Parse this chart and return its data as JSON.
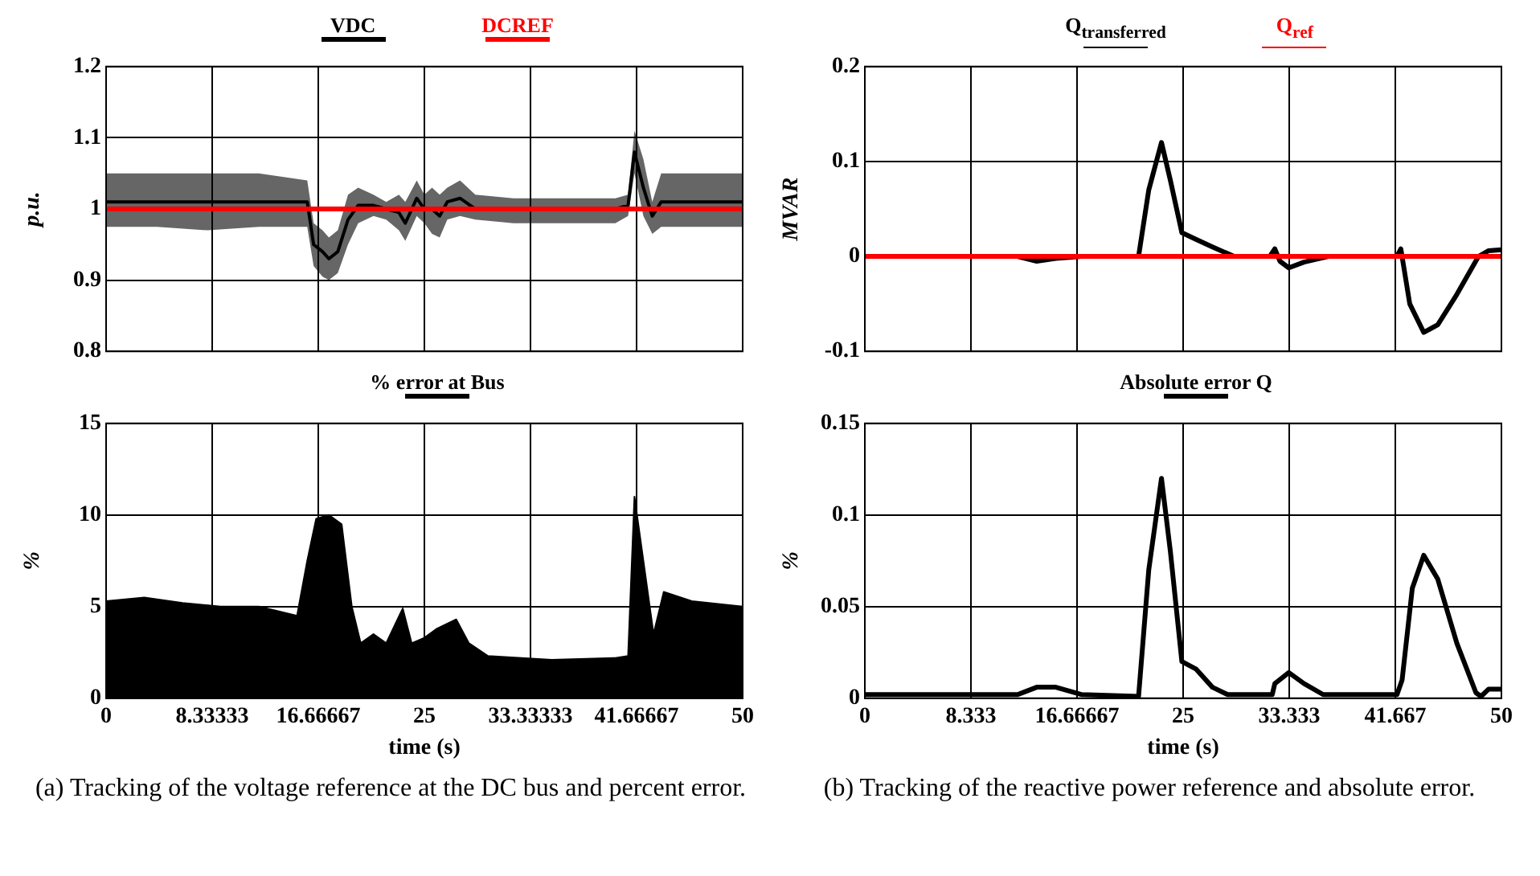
{
  "chart_data": [
    {
      "type": "line",
      "ylabel": "p.u.",
      "xlim": [
        0,
        50
      ],
      "xticks": [
        0,
        8.33333,
        16.66667,
        25,
        33.33333,
        41.66667,
        50
      ],
      "ylim": [
        0.8,
        1.2
      ],
      "yticks": [
        0.8,
        0.9,
        1,
        1.1,
        1.2
      ],
      "tick_labels": "y",
      "grid": true,
      "legend": "top",
      "series": [
        {
          "name": "VDC",
          "color": "#000000",
          "x": [
            0,
            4,
            8,
            12,
            15.8,
            16.3,
            17,
            17.5,
            18.2,
            19,
            19.8,
            21,
            22,
            23,
            23.5,
            24.4,
            25,
            25.6,
            26.2,
            26.8,
            27.8,
            29,
            32,
            36,
            40,
            41,
            41.5,
            42.2,
            42.9,
            43.6,
            46,
            50
          ],
          "values": [
            1.01,
            1.01,
            1.01,
            1.01,
            1.01,
            0.95,
            0.94,
            0.93,
            0.94,
            0.985,
            1.005,
            1.005,
            1.0,
            0.995,
            0.98,
            1.015,
            1.0,
            1.0,
            0.99,
            1.01,
            1.015,
            1.0,
            1.0,
            1.0,
            1.0,
            1.005,
            1.08,
            1.03,
            0.99,
            1.01,
            1.01,
            1.01
          ],
          "lower": [
            0.975,
            0.975,
            0.97,
            0.975,
            0.975,
            0.92,
            0.905,
            0.9,
            0.91,
            0.95,
            0.98,
            0.99,
            0.985,
            0.97,
            0.955,
            0.99,
            0.98,
            0.965,
            0.96,
            0.985,
            0.99,
            0.985,
            0.98,
            0.98,
            0.98,
            0.99,
            1.05,
            0.99,
            0.965,
            0.975,
            0.975,
            0.975
          ],
          "upper": [
            1.05,
            1.05,
            1.05,
            1.05,
            1.04,
            0.98,
            0.97,
            0.96,
            0.97,
            1.02,
            1.03,
            1.02,
            1.01,
            1.02,
            1.01,
            1.04,
            1.02,
            1.03,
            1.02,
            1.03,
            1.04,
            1.02,
            1.015,
            1.015,
            1.015,
            1.02,
            1.11,
            1.07,
            1.01,
            1.05,
            1.05,
            1.05
          ]
        },
        {
          "name": "DCREF",
          "color": "#ff0000",
          "x": [
            0,
            50
          ],
          "values": [
            1,
            1
          ]
        }
      ]
    },
    {
      "type": "area",
      "xlabel": "time (s)",
      "ylabel": "%",
      "xlim": [
        0,
        50
      ],
      "xticks": [
        0,
        8.33333,
        16.66667,
        25,
        33.33333,
        41.66667,
        50
      ],
      "ylim": [
        0,
        15
      ],
      "yticks": [
        0,
        5,
        10,
        15
      ],
      "grid": true,
      "legend": "top",
      "series": [
        {
          "name": "% error at Bus",
          "color": "#000000",
          "x": [
            0,
            3,
            6,
            9,
            12,
            15,
            15.8,
            16.5,
            17.5,
            18.5,
            19.3,
            20,
            21,
            22,
            23.3,
            24,
            25,
            26,
            27.5,
            28.5,
            30,
            35,
            40,
            41,
            41.5,
            42.3,
            43,
            43.8,
            46,
            50
          ],
          "values": [
            5.3,
            5.5,
            5.2,
            5,
            5,
            4.5,
            7.5,
            9.8,
            10,
            9.5,
            5,
            3,
            3.5,
            3,
            4.9,
            3,
            3.3,
            3.8,
            4.3,
            3,
            2.3,
            2.1,
            2.2,
            2.3,
            11,
            7,
            3.5,
            5.8,
            5.3,
            5
          ]
        }
      ],
      "annotations": [
        "(a) Tracking of the voltage reference at the DC bus and percent error."
      ]
    },
    {
      "type": "line",
      "ylabel": "MVAR",
      "xlim": [
        0,
        50
      ],
      "xticks": [
        0,
        8.333,
        16.66667,
        25,
        33.333,
        41.667,
        50
      ],
      "ylim": [
        -0.1,
        0.2
      ],
      "yticks": [
        -0.1,
        0,
        0.1,
        0.2
      ],
      "tick_labels": "y",
      "grid": true,
      "legend": "top",
      "series": [
        {
          "name": "Q$_{transferred}$",
          "color": "#000000",
          "x": [
            0,
            10,
            12,
            13.5,
            15,
            17,
            21.5,
            22.3,
            23.3,
            24,
            24.9,
            26,
            27.3,
            29,
            31.8,
            32.2,
            32.6,
            33.3,
            34.5,
            36.4,
            41.8,
            42.1,
            42.8,
            43.9,
            45,
            46.5,
            48.2,
            49,
            50
          ],
          "values": [
            0,
            0,
            0,
            -0.005,
            -0.002,
            0,
            0,
            0.07,
            0.12,
            0.08,
            0.025,
            0.018,
            0.01,
            0,
            0,
            0.008,
            -0.005,
            -0.012,
            -0.006,
            0,
            0,
            0.008,
            -0.05,
            -0.08,
            -0.072,
            -0.04,
            0,
            0.006,
            0.007
          ]
        },
        {
          "name": "Q$_{ref}$",
          "color": "#ff0000",
          "x": [
            0,
            50
          ],
          "values": [
            0,
            0
          ]
        }
      ]
    },
    {
      "type": "line",
      "xlabel": "time (s)",
      "ylabel": "%",
      "xlim": [
        0,
        50
      ],
      "xticks": [
        0,
        8.333,
        16.66667,
        25,
        33.333,
        41.667,
        50
      ],
      "ylim": [
        0,
        0.15
      ],
      "yticks": [
        0,
        0.05,
        0.1,
        0.15
      ],
      "grid": true,
      "legend": "top",
      "series": [
        {
          "name": "Absolute error Q",
          "color": "#000000",
          "x": [
            0,
            12,
            13.5,
            15,
            17,
            21.5,
            22.3,
            23.3,
            24,
            24.9,
            26,
            27.3,
            28.5,
            32,
            32.2,
            33.3,
            34.5,
            36,
            41.8,
            42.2,
            43,
            43.9,
            45,
            46.5,
            48,
            48.4,
            49,
            50
          ],
          "values": [
            0.002,
            0.002,
            0.006,
            0.006,
            0.002,
            0.001,
            0.07,
            0.12,
            0.08,
            0.02,
            0.016,
            0.006,
            0.002,
            0.002,
            0.008,
            0.014,
            0.008,
            0.002,
            0.002,
            0.01,
            0.06,
            0.078,
            0.065,
            0.03,
            0.003,
            0.001,
            0.005,
            0.005
          ]
        }
      ],
      "annotations": [
        "(b) Tracking of the reactive power reference and absolute error."
      ]
    }
  ]
}
